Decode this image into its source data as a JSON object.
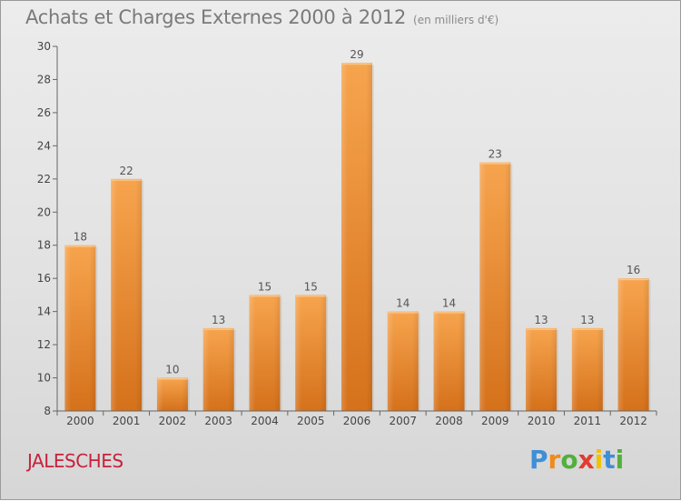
{
  "chart_data": {
    "type": "bar",
    "title": "Achats et Charges Externes 2000 à 2012",
    "subtitle": "(en milliers d'€)",
    "categories": [
      "2000",
      "2001",
      "2002",
      "2003",
      "2004",
      "2005",
      "2006",
      "2007",
      "2008",
      "2009",
      "2010",
      "2011",
      "2012"
    ],
    "values": [
      18,
      22,
      10,
      13,
      15,
      15,
      29,
      14,
      14,
      23,
      13,
      13,
      16
    ],
    "ylim": [
      8,
      30
    ],
    "yticks": [
      8,
      10,
      12,
      14,
      16,
      18,
      20,
      22,
      24,
      26,
      28,
      30
    ],
    "grid": false,
    "bar_color_top": "#f7a44e",
    "bar_color_bottom": "#d5711b"
  },
  "location": "JALESCHES",
  "logo": {
    "text": "Proxiti",
    "letters": [
      {
        "ch": "P",
        "color": "#3d8fd6"
      },
      {
        "ch": "r",
        "color": "#f08a1c"
      },
      {
        "ch": "o",
        "color": "#52b03b"
      },
      {
        "ch": "x",
        "color": "#e23b2f"
      },
      {
        "ch": "i",
        "color": "#f2c100"
      },
      {
        "ch": "t",
        "color": "#3d8fd6"
      },
      {
        "ch": "i",
        "color": "#52b03b"
      }
    ]
  },
  "colors": {
    "title": "#7a7a7a",
    "location": "#c8213b",
    "axis": "#555555"
  }
}
